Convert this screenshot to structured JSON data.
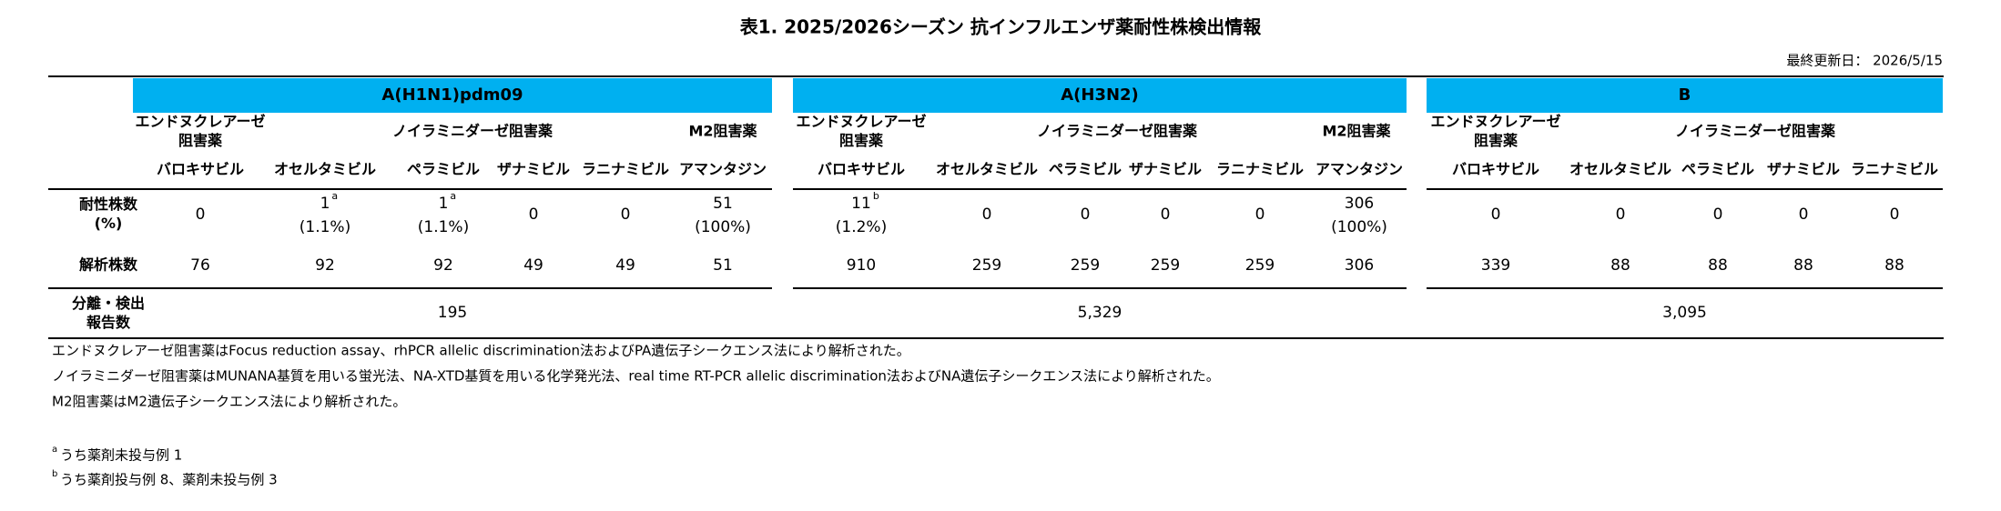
{
  "title": "表1. 2025/2026シーズン 抗インフルエンザ薬耐性株検出情報",
  "updated": "最終更新日： 2026/5/15",
  "row_labels": {
    "resistant": [
      "耐性株数",
      "(%)"
    ],
    "analyzed": [
      "解析株数"
    ],
    "reported": [
      "分離・検出",
      "報告数"
    ]
  },
  "groups": [
    {
      "name": "A(H1N1)pdm09",
      "classes": [
        [
          "エンドヌクレアーゼ",
          "阻害薬"
        ],
        [
          "ノイラミニダーゼ阻害薬"
        ],
        [
          "M2阻害薬"
        ]
      ],
      "drugs": [
        "バロキサビル",
        "オセルタミビル",
        "ペラミビル",
        "ザナミビル",
        "ラニナミビル",
        "アマンタジン"
      ],
      "resistant": [
        {
          "value": 0
        },
        {
          "value": 1,
          "sup": "a",
          "percent": "(1.1%)"
        },
        {
          "value": 1,
          "sup": "a",
          "percent": "(1.1%)"
        },
        {
          "value": 0
        },
        {
          "value": 0
        },
        {
          "value": 51,
          "percent": "(100%)"
        }
      ],
      "analyzed": [
        76,
        92,
        92,
        49,
        49,
        51
      ],
      "reported": "195"
    },
    {
      "name": "A(H3N2)",
      "classes": [
        [
          "エンドヌクレアーゼ",
          "阻害薬"
        ],
        [
          "ノイラミニダーゼ阻害薬"
        ],
        [
          "M2阻害薬"
        ]
      ],
      "drugs": [
        "バロキサビル",
        "オセルタミビル",
        "ペラミビル",
        "ザナミビル",
        "ラニナミビル",
        "アマンタジン"
      ],
      "resistant": [
        {
          "value": 11,
          "sup": "b",
          "percent": "(1.2%)"
        },
        {
          "value": 0
        },
        {
          "value": 0
        },
        {
          "value": 0
        },
        {
          "value": 0
        },
        {
          "value": 306,
          "percent": "(100%)"
        }
      ],
      "analyzed": [
        910,
        259,
        259,
        259,
        259,
        306
      ],
      "reported": "5,329"
    },
    {
      "name": "B",
      "classes": [
        [
          "エンドヌクレアーゼ",
          "阻害薬"
        ],
        [
          "ノイラミニダーゼ阻害薬"
        ]
      ],
      "drugs": [
        "バロキサビル",
        "オセルタミビル",
        "ペラミビル",
        "ザナミビル",
        "ラニナミビル"
      ],
      "resistant": [
        {
          "value": 0
        },
        {
          "value": 0
        },
        {
          "value": 0
        },
        {
          "value": 0
        },
        {
          "value": 0
        }
      ],
      "analyzed": [
        339,
        88,
        88,
        88,
        88
      ],
      "reported": "3,095"
    }
  ],
  "notes": [
    "エンドヌクレアーゼ阻害薬はFocus reduction assay、rhPCR allelic discrimination法およびPA遺伝子シークエンス法により解析された。",
    "ノイラミニダーゼ阻害薬はMUNANA基質を用いる蛍光法、NA-XTD基質を用いる化学発光法、real time RT-PCR allelic discrimination法およびNA遺伝子シークエンス法により解析された。",
    "M2阻害薬はM2遺伝子シークエンス法により解析された。"
  ],
  "footnotes": [
    {
      "mark": "a",
      "text": "うち薬剤未投与例 1"
    },
    {
      "mark": "b",
      "text": "うち薬剤投与例 8、薬剤未投与例 3"
    }
  ]
}
